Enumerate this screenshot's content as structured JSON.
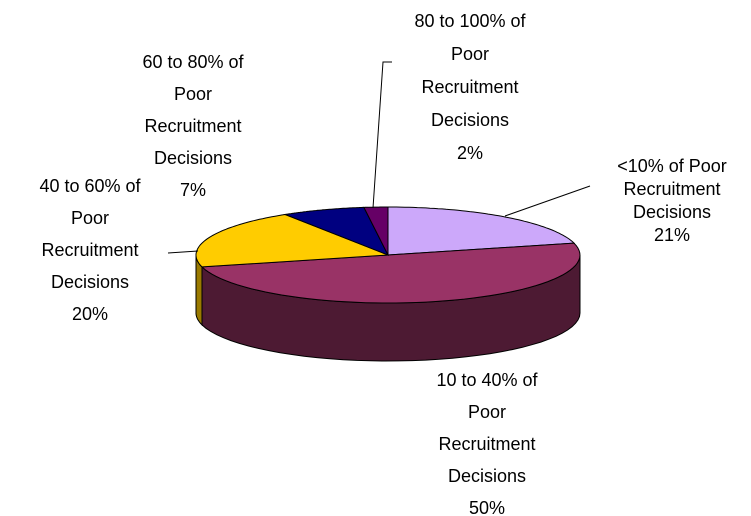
{
  "chart_data": {
    "type": "pie",
    "three_d": true,
    "categories": [
      "<10% of Poor Recruitment Decisions",
      "10 to 40% of Poor Recruitment Decisions",
      "40 to 60% of Poor Recruitment Decisions",
      "60 to 80% of Poor Recruitment Decisions",
      "80 to 100% of Poor Recruitment Decisions"
    ],
    "values": [
      21,
      50,
      20,
      7,
      2
    ],
    "value_labels": [
      "21%",
      "50%",
      "20%",
      "7%",
      "2%"
    ],
    "colors": [
      "#cca8fa",
      "#993366",
      "#ffcc00",
      "#000080",
      "#660066"
    ],
    "side_colors": [
      "#8a6aa8",
      "#4d1a33",
      "#9a7a00",
      "#000040",
      "#330033"
    ]
  }
}
